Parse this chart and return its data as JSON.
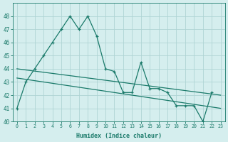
{
  "x": [
    0,
    1,
    2,
    3,
    4,
    5,
    6,
    7,
    8,
    9,
    10,
    11,
    12,
    13,
    14,
    15,
    16,
    17,
    18,
    19,
    20,
    21,
    22
  ],
  "y_main": [
    41,
    43,
    44,
    45,
    46,
    47,
    48,
    47,
    48,
    46.5,
    44,
    43.8,
    42.2,
    42.2,
    44.5,
    42.5,
    42.5,
    42.2,
    41.2,
    41.2,
    41.2,
    40,
    42.2
  ],
  "trend1_x0": 0,
  "trend1_y0": 44.0,
  "trend1_x1": 23,
  "trend1_y1": 42.0,
  "trend2_x0": 0,
  "trend2_y0": 43.3,
  "trend2_x1": 23,
  "trend2_y1": 41.0,
  "line_color": "#1a7a6a",
  "bg_color": "#d5eeee",
  "grid_color": "#afd4d4",
  "xlabel": "Humidex (Indice chaleur)",
  "ylim": [
    40,
    49
  ],
  "xlim_min": -0.5,
  "xlim_max": 23.5,
  "yticks": [
    40,
    41,
    42,
    43,
    44,
    45,
    46,
    47,
    48
  ],
  "xticks": [
    0,
    1,
    2,
    3,
    4,
    5,
    6,
    7,
    8,
    9,
    10,
    11,
    12,
    13,
    14,
    15,
    16,
    17,
    18,
    19,
    20,
    21,
    22,
    23
  ]
}
